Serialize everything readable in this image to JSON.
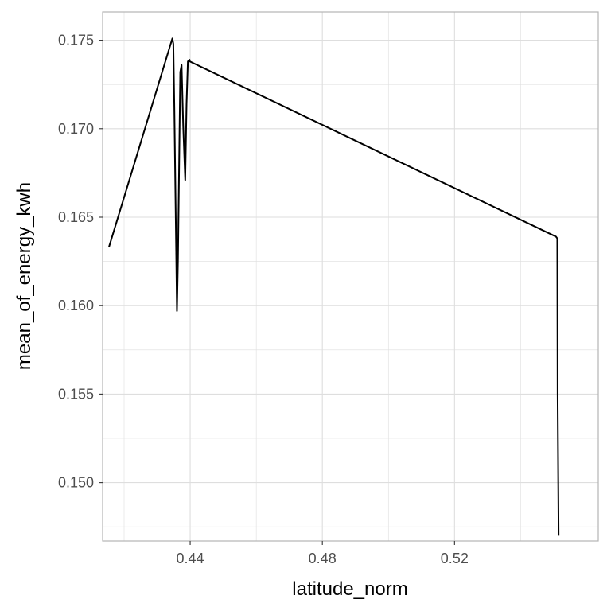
{
  "chart_data": {
    "type": "line",
    "title": "",
    "xlabel": "latitude_norm",
    "ylabel": "mean_of_energy_kwh",
    "xlim": [
      0.4135,
      0.5635
    ],
    "ylim": [
      0.1467,
      0.1766
    ],
    "x_ticks": [
      0.44,
      0.48,
      0.52
    ],
    "x_tick_labels": [
      "0.44",
      "0.48",
      "0.52"
    ],
    "y_ticks": [
      0.15,
      0.155,
      0.16,
      0.165,
      0.17,
      0.175
    ],
    "y_tick_labels": [
      "0.150",
      "0.155",
      "0.160",
      "0.165",
      "0.170",
      "0.175"
    ],
    "grid": true,
    "legend": "none",
    "series": [
      {
        "color": "#000000",
        "x": [
          0.4154,
          0.4346,
          0.4349,
          0.4352,
          0.436,
          0.4363,
          0.437,
          0.4374,
          0.4379,
          0.4385,
          0.4389,
          0.4393,
          0.4398,
          0.4399,
          0.5507,
          0.5511,
          0.5512,
          0.5515
        ],
        "y": [
          0.1633,
          0.1751,
          0.1748,
          0.1712,
          0.1597,
          0.1626,
          0.1732,
          0.1736,
          0.1701,
          0.1671,
          0.1714,
          0.1738,
          0.1739,
          0.1738,
          0.1639,
          0.1638,
          0.155,
          0.147
        ]
      }
    ],
    "colors": {
      "line": "#000000",
      "grid": "#dedede",
      "panel_border": "#b3b3b3",
      "background": "#ffffff"
    }
  }
}
